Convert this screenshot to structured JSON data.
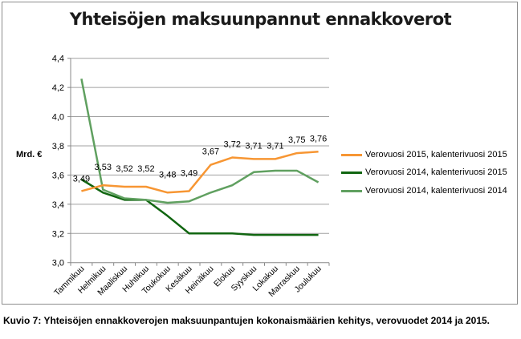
{
  "chart_data": {
    "type": "line",
    "title": "Yhteisöjen maksuunpannut ennakkoverot",
    "ylabel": "Mrd. €",
    "xlabel": "",
    "ylim": [
      3.0,
      4.4
    ],
    "yticks": [
      "3,0",
      "3,2",
      "3,4",
      "3,6",
      "3,8",
      "4,0",
      "4,2",
      "4,4"
    ],
    "grid": true,
    "legend_position": "right",
    "categories": [
      "Tammikuu",
      "Helmikuu",
      "Maaliskuu",
      "Huhtikuu",
      "Toukokuu",
      "Kesäkuu",
      "Heinäkuu",
      "Elokuu",
      "Syyskuu",
      "Lokakuu",
      "Marraskuu",
      "Joulukuu"
    ],
    "series": [
      {
        "name": "Verovuosi 2015, kalenterivuosi 2015",
        "color": "#f79633",
        "values": [
          3.49,
          3.53,
          3.52,
          3.52,
          3.48,
          3.49,
          3.67,
          3.72,
          3.71,
          3.71,
          3.75,
          3.76
        ],
        "labels": [
          "3,49",
          "3,53",
          "3,52",
          "3,52",
          "3,48",
          "3,49",
          "3,67",
          "3,72",
          "3,71",
          "3,71",
          "3,75",
          "3,76"
        ]
      },
      {
        "name": "Verovuosi 2014, kalenterivuosi 2015",
        "color": "#116611",
        "values": [
          3.57,
          3.48,
          3.43,
          3.43,
          3.32,
          3.2,
          3.2,
          3.2,
          3.19,
          3.19,
          3.19,
          3.19
        ]
      },
      {
        "name": "Verovuosi 2014, kalenterivuosi 2014",
        "color": "#60a060",
        "values": [
          4.26,
          3.5,
          3.44,
          3.43,
          3.41,
          3.42,
          3.48,
          3.53,
          3.62,
          3.63,
          3.63,
          3.55
        ]
      }
    ]
  },
  "caption": "Kuvio 7: Yhteisöjen ennakkoverojen maksuunpantujen kokonaismäärien kehitys, verovuodet 2014 ja 2015."
}
